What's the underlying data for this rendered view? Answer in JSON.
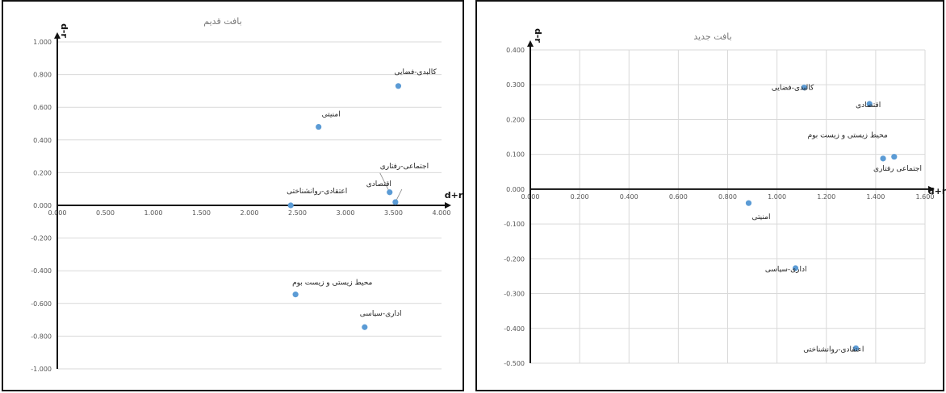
{
  "chart_data": [
    {
      "type": "scatter",
      "title": "بافت قدیم",
      "xlabel": "d+r",
      "ylabel": "d-r",
      "xlim": [
        0,
        4
      ],
      "ylim": [
        -1,
        1
      ],
      "x_ticks": [
        "0.000",
        "0.500",
        "1.000",
        "1.500",
        "2.000",
        "2.500",
        "3.000",
        "3.500",
        "4.000"
      ],
      "y_ticks": [
        "1.000",
        "0.800",
        "0.600",
        "0.400",
        "0.200",
        "0.000",
        "-0.200",
        "-0.400",
        "-0.600",
        "-0.800",
        "-1.000"
      ],
      "grid": "horizontal",
      "marker_color": "#5b9bd5",
      "points": [
        {
          "label": "کالبدی-فضایی",
          "x": 3.55,
          "y": 0.73
        },
        {
          "label": "امنیتی",
          "x": 2.72,
          "y": 0.48
        },
        {
          "label": "اجتماعی-رفتاری",
          "x": 3.46,
          "y": 0.08
        },
        {
          "label": "اقتصادی",
          "x": 3.52,
          "y": 0.02
        },
        {
          "label": "اعتقادی-روانشناختی",
          "x": 2.43,
          "y": 0.0
        },
        {
          "label": "محیط زیستی و زیست بوم",
          "x": 2.48,
          "y": -0.545
        },
        {
          "label": "اداری-سیاسی",
          "x": 3.2,
          "y": -0.745
        }
      ]
    },
    {
      "type": "scatter",
      "title": "بافت جدید",
      "xlabel": "d+r",
      "ylabel": "d-r",
      "xlim": [
        0,
        1.6
      ],
      "ylim": [
        -0.5,
        0.4
      ],
      "x_ticks": [
        "0.000",
        "0.200",
        "0.400",
        "0.600",
        "0.800",
        "1.000",
        "1.200",
        "1.400",
        "1.600"
      ],
      "y_ticks": [
        "0.400",
        "0.300",
        "0.200",
        "0.100",
        "0.000",
        "-0.100",
        "-0.200",
        "-0.300",
        "-0.400",
        "-0.500"
      ],
      "grid": "both",
      "marker_color": "#5b9bd5",
      "points": [
        {
          "label": "کالبدی-فضایی",
          "x": 1.11,
          "y": 0.292
        },
        {
          "label": "اقتصادی",
          "x": 1.375,
          "y": 0.245
        },
        {
          "label": "محیط زیستی و زیست بوم",
          "x": 1.475,
          "y": 0.093
        },
        {
          "label": "اجتماعی رفتاری",
          "x": 1.43,
          "y": 0.088
        },
        {
          "label": "امنیتی",
          "x": 0.885,
          "y": -0.04
        },
        {
          "label": "اداری-سیاسی",
          "x": 1.075,
          "y": -0.227
        },
        {
          "label": "اعتقادی-روانشناختی",
          "x": 1.32,
          "y": -0.457
        }
      ]
    }
  ]
}
